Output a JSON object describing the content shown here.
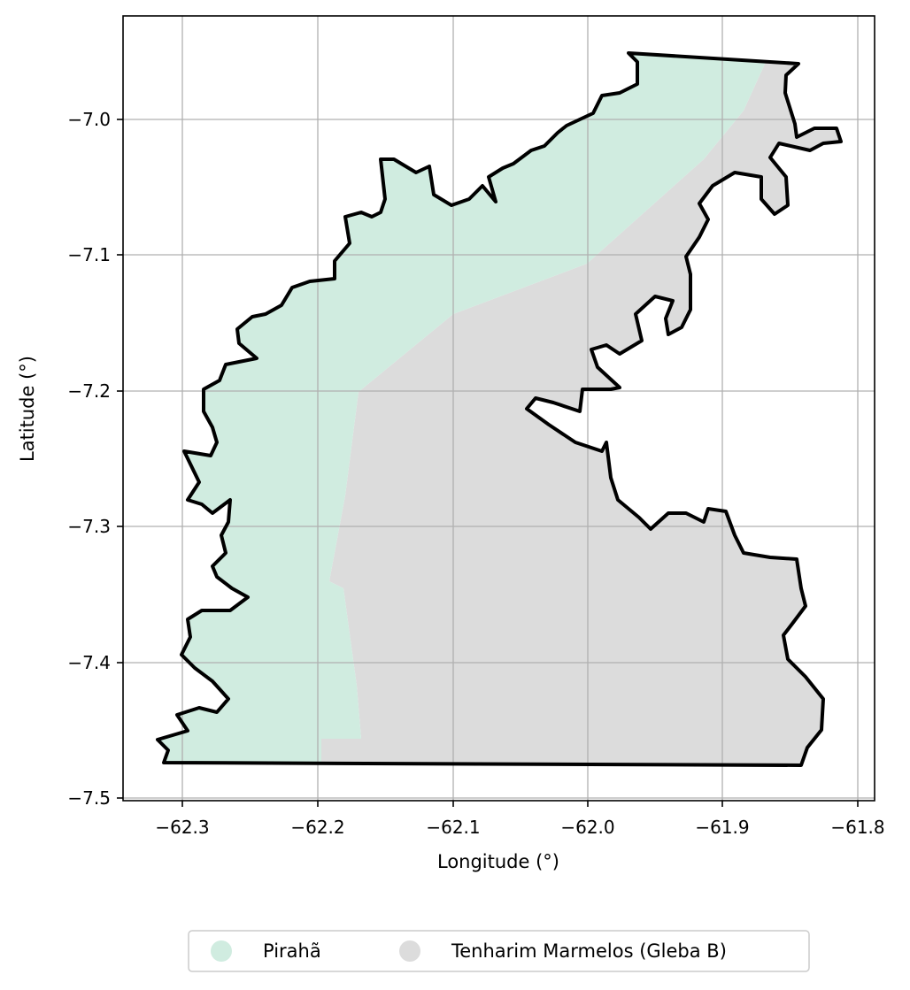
{
  "map": {
    "xlabel": "Longitude (°)",
    "ylabel": "Latitude (°)",
    "xlim": [
      -62.345,
      -61.79
    ],
    "ylim": [
      -7.503,
      -6.925
    ],
    "x_ticks": [
      -62.3,
      -62.2,
      -62.1,
      -62.0,
      -61.9,
      -61.8
    ],
    "x_tick_labels": [
      "−62.3",
      "−62.2",
      "−62.1",
      "−62.0",
      "−61.9",
      "−61.8"
    ],
    "y_ticks": [
      -7.0,
      -7.1,
      -7.2,
      -7.3,
      -7.4,
      -7.5
    ],
    "y_tick_labels": [
      "−7.0",
      "−7.1",
      "−7.2",
      "−7.3",
      "−7.4",
      "−7.5"
    ],
    "grid": true,
    "legend_position": "bottom-center",
    "legend": [
      {
        "label": "Pirahã",
        "color": "#d0ece0"
      },
      {
        "label": "Tenharim Marmelos (Gleba B)",
        "color": "#dcdcdc"
      }
    ],
    "colors": {
      "territory_pirahã": "#d0ece0",
      "territory_tenharim": "#dcdcdc",
      "boundary": "#000000",
      "grid": "#b0b0b0"
    }
  }
}
